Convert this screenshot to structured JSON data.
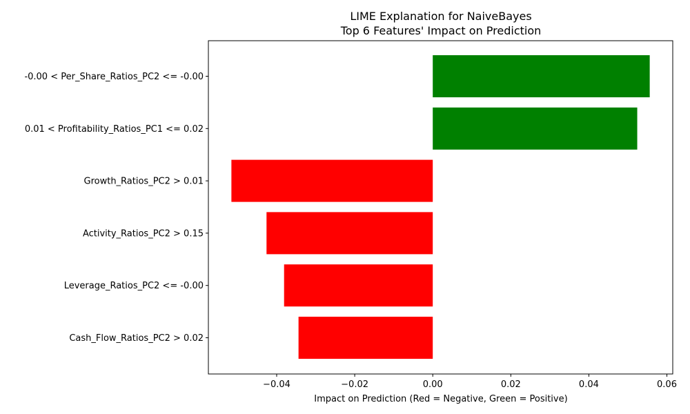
{
  "chart_data": {
    "type": "bar",
    "orientation": "horizontal",
    "title": "LIME Explanation for NaiveBayes",
    "subtitle": "Top 6 Features' Impact on Prediction",
    "xlabel": "Impact on Prediction (Red = Negative, Green = Positive)",
    "ylabel": "",
    "xlim": [
      -0.0575,
      0.0615
    ],
    "xticks": [
      "−0.04",
      "−0.02",
      "0.00",
      "0.02",
      "0.04",
      "0.06"
    ],
    "xtick_values": [
      -0.04,
      -0.02,
      0.0,
      0.02,
      0.04,
      0.06
    ],
    "categories": [
      "-0.00 < Per_Share_Ratios_PC2 <= -0.00",
      "0.01 < Profitability_Ratios_PC1 <= 0.02",
      "Growth_Ratios_PC2 > 0.01",
      "Activity_Ratios_PC2 > 0.15",
      "Leverage_Ratios_PC2 <= -0.00",
      "Cash_Flow_Ratios_PC2 > 0.02"
    ],
    "values": [
      0.0556,
      0.0524,
      -0.0516,
      -0.0426,
      -0.0381,
      -0.0344
    ],
    "colors": {
      "positive": "#008000",
      "negative": "#ff0000"
    },
    "grid": false,
    "legend": "none"
  }
}
